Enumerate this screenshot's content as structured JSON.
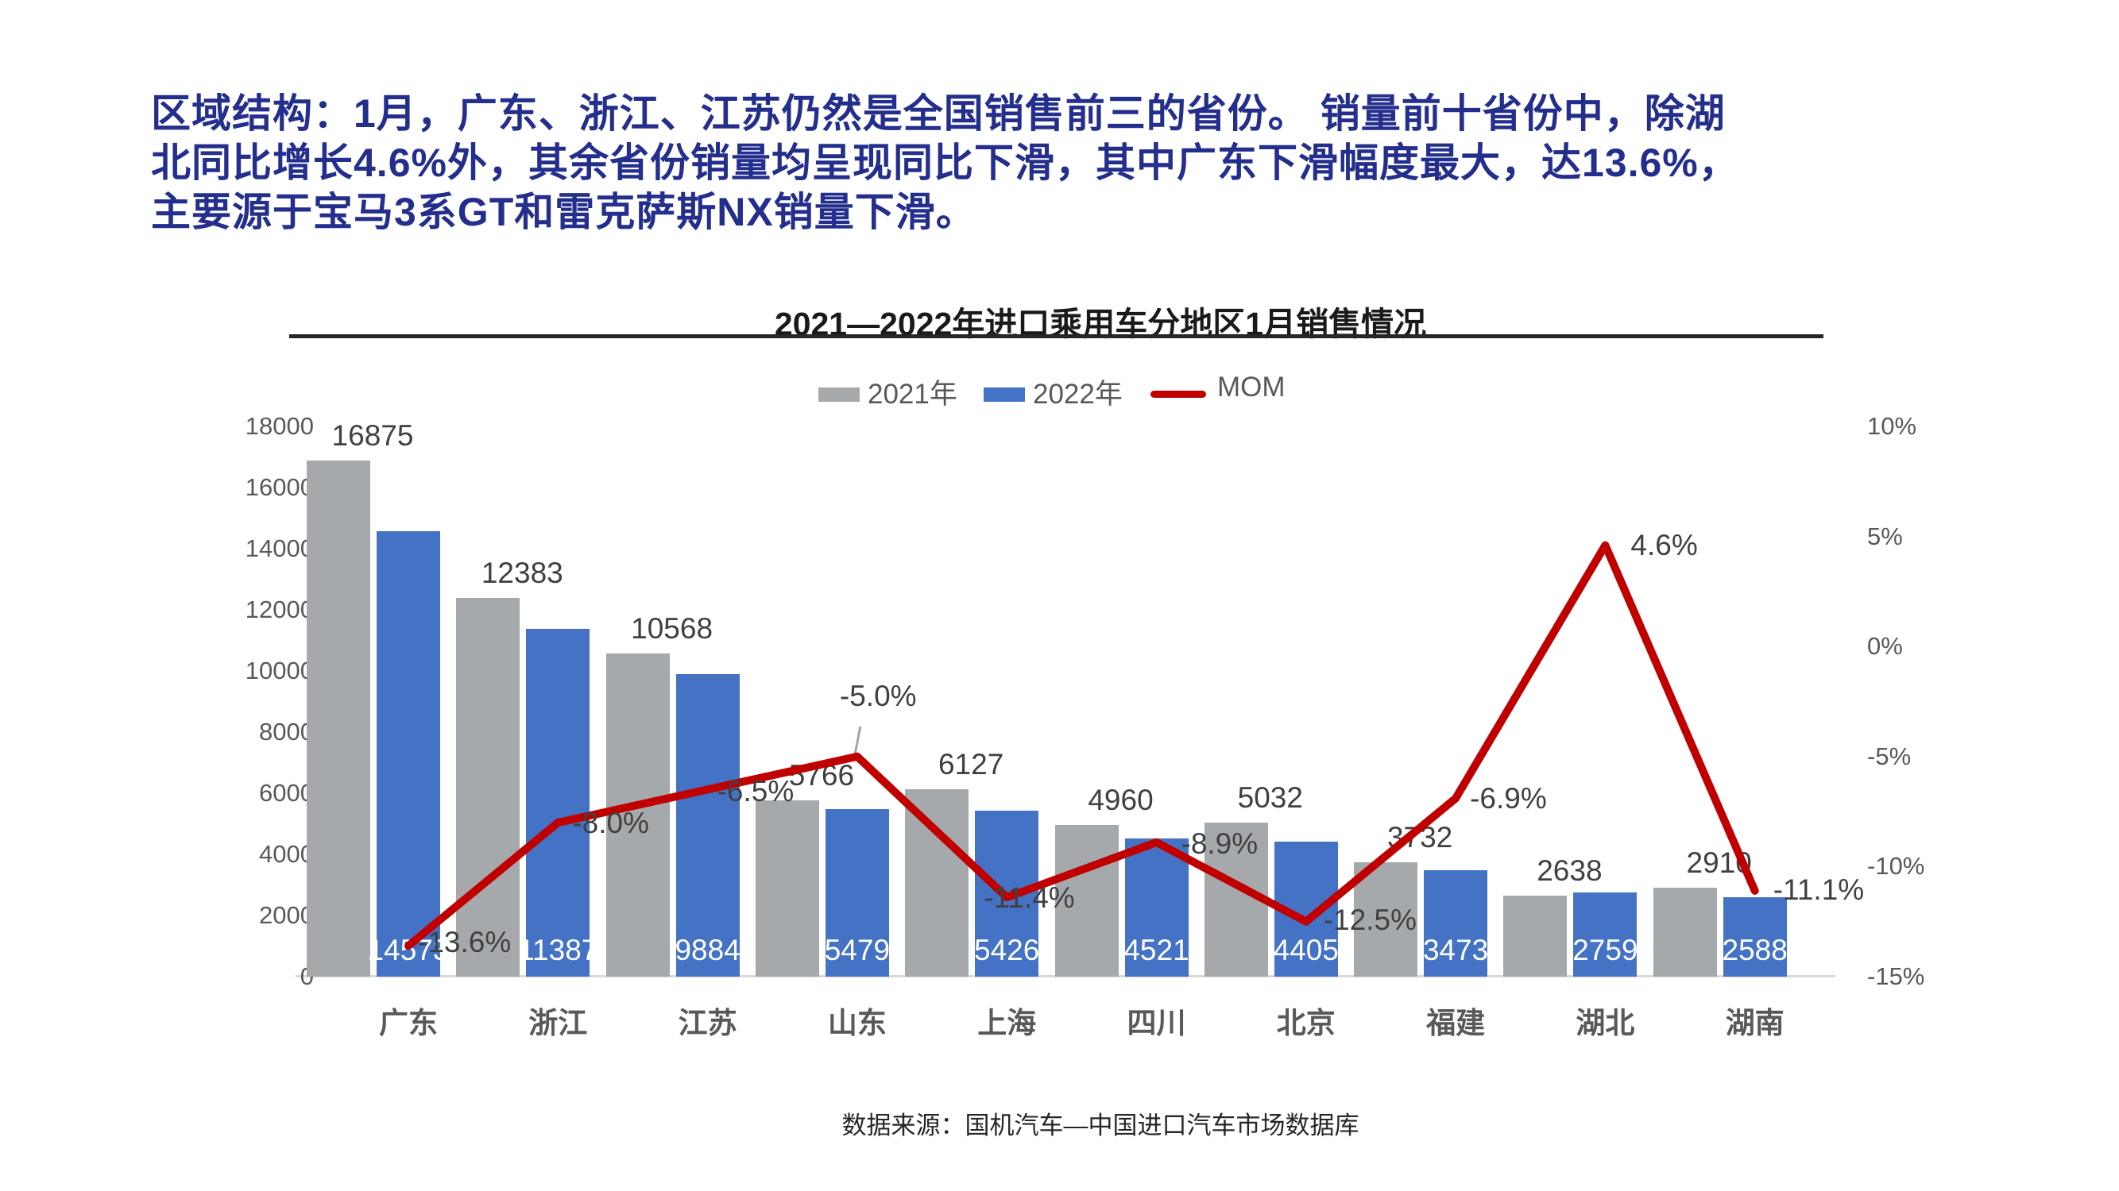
{
  "page": {
    "heading": {
      "color": "#242e8c",
      "lines": [
        "区域结构：1月，广东、浙江、江苏仍然是全国销售前三的省份。 销量前十省份中，除湖",
        "北同比增长4.6%外，其余省份销量均呈现同比下滑，其中广东下滑幅度最大，达13.6%，",
        "主要源于宝马3系GT和雷克萨斯NX销量下滑。"
      ]
    },
    "source_note": "数据来源：国机汽车—中国进口汽车市场数据库"
  },
  "chart_data": {
    "type": "bar+line",
    "title": "2021—2022年进口乘用车分地区1月销售情况",
    "grid": false,
    "legend_position": "top",
    "categories": [
      "广东",
      "浙江",
      "江苏",
      "山东",
      "上海",
      "四川",
      "北京",
      "福建",
      "湖北",
      "湖南"
    ],
    "series": [
      {
        "name": "2021年",
        "color": "#a6a9ac",
        "values": [
          16875,
          12383,
          10568,
          5766,
          6127,
          4960,
          5032,
          3732,
          2638,
          2910
        ]
      },
      {
        "name": "2022年",
        "color": "#4472c4",
        "values": [
          14573,
          11387,
          9884,
          5479,
          5426,
          4521,
          4405,
          3473,
          2759,
          2588
        ]
      }
    ],
    "line_series": {
      "name": "MOM",
      "color": "#c00000",
      "axis": "right",
      "values_pct": [
        -13.6,
        -8.0,
        -6.5,
        -5.0,
        -11.4,
        -8.9,
        -12.5,
        -6.9,
        4.6,
        -11.1
      ],
      "labels": [
        "-13.6%",
        "-8.0%",
        "-6.5%",
        "-5.0%",
        "-11.4%",
        "-8.9%",
        "-12.5%",
        "-6.9%",
        "4.6%",
        "-11.1%"
      ]
    },
    "left_axis": {
      "min": 0,
      "max": 18000,
      "tick_step": 2000,
      "ticks": [
        "18000",
        "16000",
        "14000",
        "12000",
        "10000",
        "8000",
        "6000",
        "4000",
        "2000",
        "0"
      ]
    },
    "right_axis": {
      "min": -15,
      "max": 10,
      "tick_step": 5,
      "ticks": [
        "10%",
        "5%",
        "0%",
        "-5%",
        "-10%",
        "-15%"
      ]
    },
    "legend": [
      {
        "label": "2021年",
        "color": "#a6a9ac",
        "type": "box"
      },
      {
        "label": "2022年",
        "color": "#4472c4",
        "type": "box"
      },
      {
        "label": "MOM",
        "color": "#c00000",
        "type": "line"
      }
    ]
  }
}
